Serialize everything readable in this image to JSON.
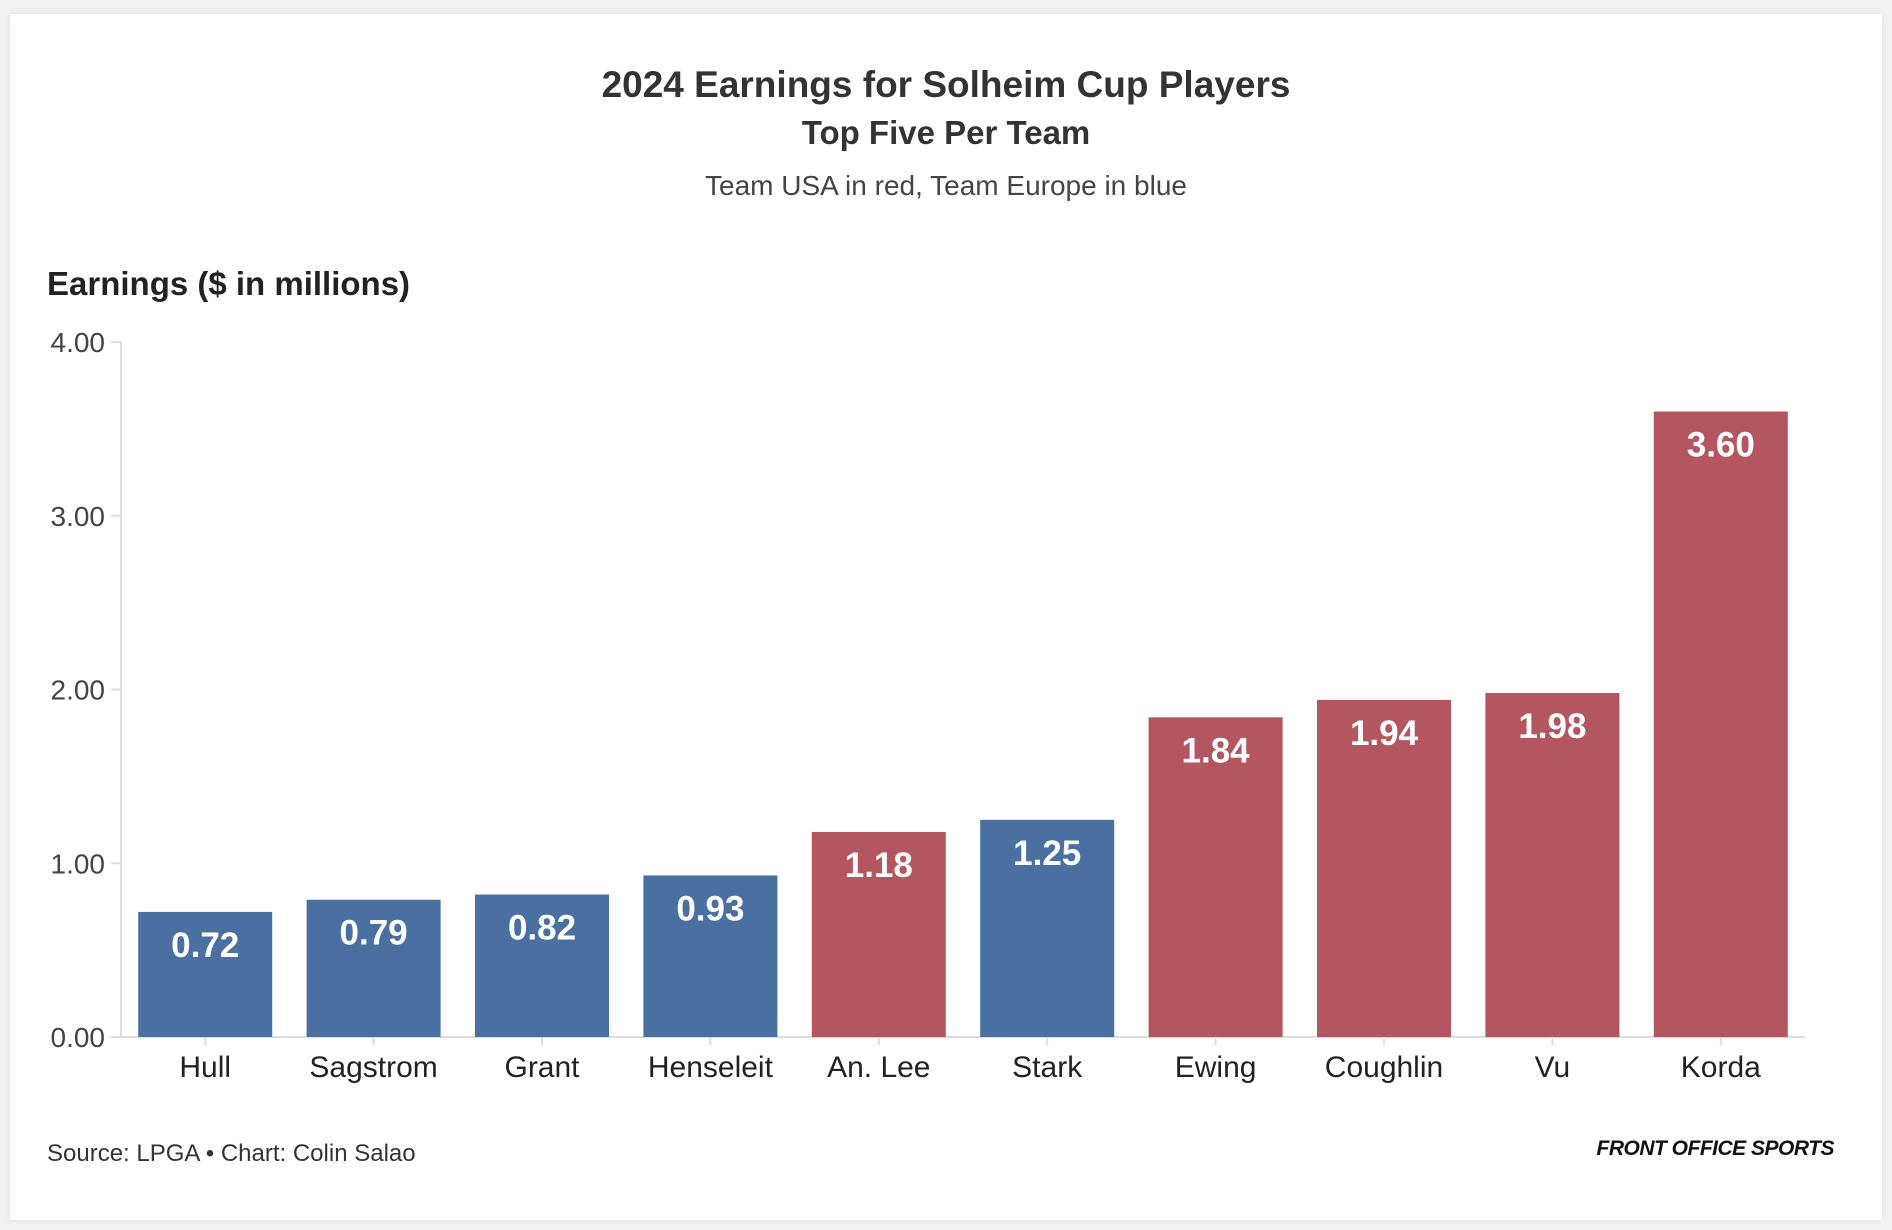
{
  "colors": {
    "usa": "#b35660",
    "europe": "#4a6fa1",
    "axis": "#dddddd",
    "background": "#ffffff"
  },
  "footer": {
    "source": "Source: LPGA • Chart: Colin Salao",
    "brand": "FRONT OFFICE SPORTS"
  },
  "chart_data": {
    "type": "bar",
    "title": "2024 Earnings for Solheim Cup Players",
    "subtitle": "Top Five Per Team",
    "description": "Team USA in red, Team Europe in blue",
    "xlabel": "",
    "ylabel": "Earnings ($ in millions)",
    "ylim": [
      0,
      4
    ],
    "yticks": [
      "0.00",
      "1.00",
      "2.00",
      "3.00",
      "4.00"
    ],
    "grid": false,
    "categories": [
      "Hull",
      "Sagstrom",
      "Grant",
      "Henseleit",
      "An. Lee",
      "Stark",
      "Ewing",
      "Coughlin",
      "Vu",
      "Korda"
    ],
    "values": [
      0.72,
      0.79,
      0.82,
      0.93,
      1.18,
      1.25,
      1.84,
      1.94,
      1.98,
      3.6
    ],
    "value_labels": [
      "0.72",
      "0.79",
      "0.82",
      "0.93",
      "1.18",
      "1.25",
      "1.84",
      "1.94",
      "1.98",
      "3.60"
    ],
    "teams": [
      "Europe",
      "Europe",
      "Europe",
      "Europe",
      "USA",
      "Europe",
      "USA",
      "USA",
      "USA",
      "USA"
    ]
  }
}
